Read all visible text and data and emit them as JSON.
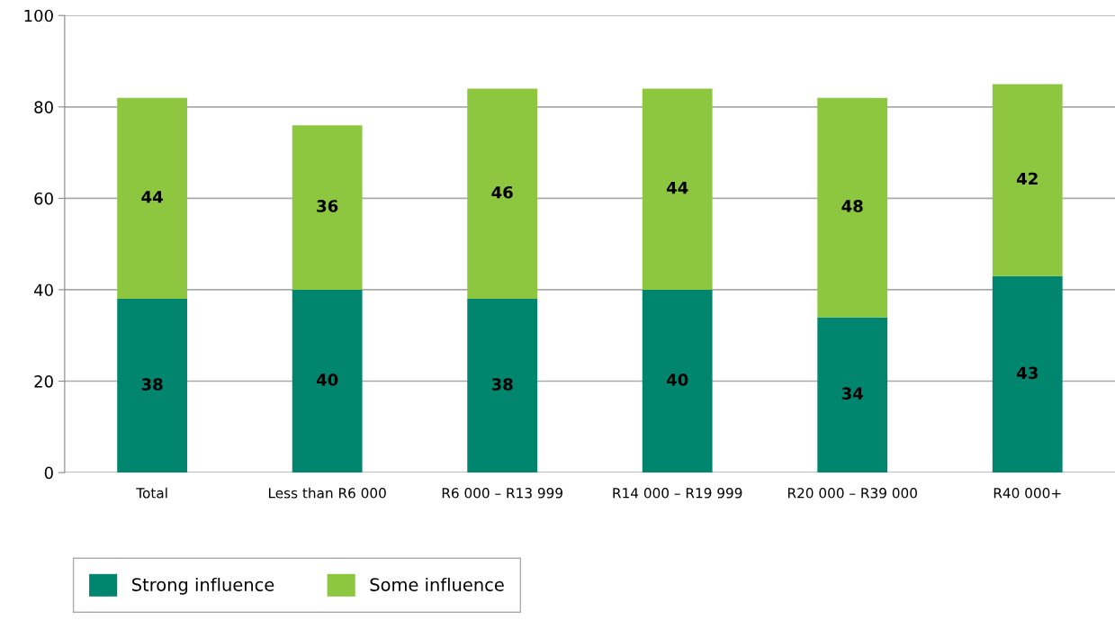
{
  "chart_data": {
    "type": "bar",
    "stacked": true,
    "categories": [
      "Total",
      "Less than R6 000",
      "R6 000 – R13 999",
      "R14 000 – R19 999",
      "R20 000 – R39 000",
      "R40 000+"
    ],
    "series": [
      {
        "name": "Strong influence",
        "color": "#00856f",
        "values": [
          38,
          40,
          38,
          40,
          34,
          43
        ]
      },
      {
        "name": "Some influence",
        "color": "#8dc63f",
        "values": [
          44,
          36,
          46,
          44,
          48,
          42
        ]
      }
    ],
    "ylim": [
      0,
      100
    ],
    "yticks": [
      0,
      20,
      40,
      60,
      80,
      100
    ],
    "grid": "y",
    "legend": "bottom left",
    "data_labels": true
  }
}
